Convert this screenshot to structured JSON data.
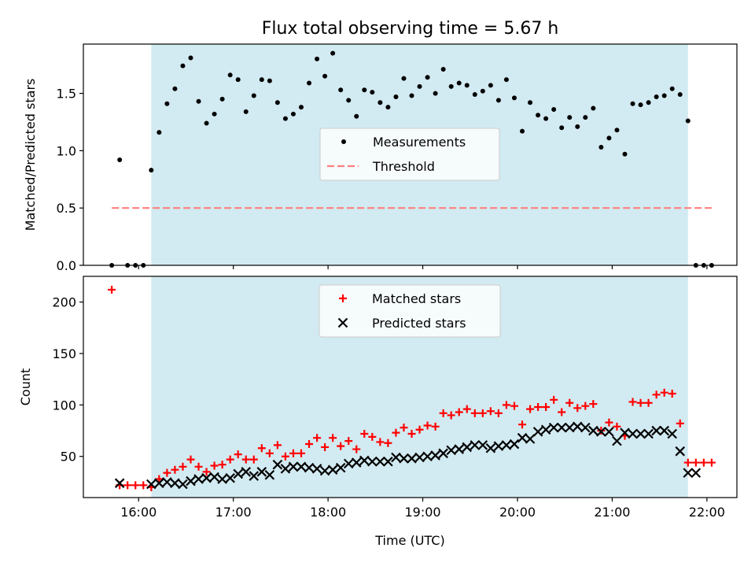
{
  "figure": {
    "title": "Flux total observing time = 5.67 h"
  },
  "chart_data": [
    {
      "type": "scatter",
      "title": "Flux total observing time = 5.67 h",
      "ylabel": "Matched/Predicted stars",
      "xlim": [
        "15:25",
        "22:19"
      ],
      "ylim": [
        0,
        1.93
      ],
      "yticks": [
        "0.0",
        "0.5",
        "1.0",
        "1.5"
      ],
      "ytick_values": [
        0,
        0.5,
        1.0,
        1.5
      ],
      "shaded_interval": [
        "16:08",
        "21:48"
      ],
      "shade_color": "#add8e6",
      "legend_position": "center",
      "series": [
        {
          "name": "Measurements",
          "color": "#000000",
          "marker": "dot",
          "x": [
            "15:43",
            "15:48",
            "15:53",
            "15:58",
            "16:03",
            "16:08",
            "16:13",
            "16:18",
            "16:23",
            "16:28",
            "16:33",
            "16:38",
            "16:43",
            "16:48",
            "16:53",
            "16:58",
            "17:03",
            "17:08",
            "17:13",
            "17:18",
            "17:23",
            "17:28",
            "17:33",
            "17:38",
            "17:43",
            "17:48",
            "17:53",
            "17:58",
            "18:03",
            "18:08",
            "18:13",
            "18:18",
            "18:23",
            "18:28",
            "18:33",
            "18:38",
            "18:43",
            "18:48",
            "18:53",
            "18:58",
            "19:03",
            "19:08",
            "19:13",
            "19:18",
            "19:23",
            "19:28",
            "19:33",
            "19:38",
            "19:43",
            "19:48",
            "19:53",
            "19:58",
            "20:03",
            "20:08",
            "20:13",
            "20:18",
            "20:23",
            "20:28",
            "20:33",
            "20:38",
            "20:43",
            "20:48",
            "20:53",
            "20:58",
            "21:03",
            "21:08",
            "21:13",
            "21:18",
            "21:23",
            "21:28",
            "21:33",
            "21:38",
            "21:43",
            "21:48",
            "21:53",
            "21:58",
            "22:03"
          ],
          "y": [
            0.0,
            0.92,
            0.0,
            0.0,
            0.0,
            0.83,
            1.16,
            1.41,
            1.54,
            1.74,
            1.81,
            1.43,
            1.24,
            1.32,
            1.45,
            1.66,
            1.62,
            1.34,
            1.48,
            1.62,
            1.61,
            1.42,
            1.28,
            1.32,
            1.38,
            1.59,
            1.8,
            1.65,
            1.85,
            1.53,
            1.44,
            1.3,
            1.53,
            1.51,
            1.42,
            1.38,
            1.47,
            1.63,
            1.48,
            1.56,
            1.64,
            1.5,
            1.71,
            1.56,
            1.59,
            1.57,
            1.49,
            1.52,
            1.57,
            1.44,
            1.62,
            1.46,
            1.17,
            1.42,
            1.31,
            1.28,
            1.36,
            1.2,
            1.29,
            1.21,
            1.29,
            1.37,
            1.03,
            1.11,
            1.18,
            0.97,
            1.41,
            1.4,
            1.42,
            1.47,
            1.48,
            1.54,
            1.49,
            1.26,
            0.0,
            0.0,
            0.0
          ]
        },
        {
          "name": "Threshold",
          "color": "#ff7f7f",
          "style": "dashed",
          "x": [
            "15:43",
            "22:03"
          ],
          "y": [
            0.5,
            0.5
          ]
        }
      ]
    },
    {
      "type": "scatter",
      "xlabel": "Time (UTC)",
      "ylabel": "Count",
      "xlim": [
        "15:25",
        "22:19"
      ],
      "ylim": [
        10,
        225
      ],
      "xticks": [
        "16:00",
        "17:00",
        "18:00",
        "19:00",
        "20:00",
        "21:00",
        "22:00"
      ],
      "yticks": [
        "50",
        "100",
        "150",
        "200"
      ],
      "ytick_values": [
        50,
        100,
        150,
        200
      ],
      "shaded_interval": [
        "16:08",
        "21:48"
      ],
      "shade_color": "#add8e6",
      "legend_position": "upper center",
      "series": [
        {
          "name": "Matched stars",
          "color": "#ff0000",
          "marker": "plus",
          "x": [
            "15:43",
            "15:48",
            "15:53",
            "15:58",
            "16:03",
            "16:08",
            "16:13",
            "16:18",
            "16:23",
            "16:28",
            "16:33",
            "16:38",
            "16:43",
            "16:48",
            "16:53",
            "16:58",
            "17:03",
            "17:08",
            "17:13",
            "17:18",
            "17:23",
            "17:28",
            "17:33",
            "17:38",
            "17:43",
            "17:48",
            "17:53",
            "17:58",
            "18:03",
            "18:08",
            "18:13",
            "18:18",
            "18:23",
            "18:28",
            "18:33",
            "18:38",
            "18:43",
            "18:48",
            "18:53",
            "18:58",
            "19:03",
            "19:08",
            "19:13",
            "19:18",
            "19:23",
            "19:28",
            "19:33",
            "19:38",
            "19:43",
            "19:48",
            "19:53",
            "19:58",
            "20:03",
            "20:08",
            "20:13",
            "20:18",
            "20:23",
            "20:28",
            "20:33",
            "20:38",
            "20:43",
            "20:48",
            "20:53",
            "20:58",
            "21:03",
            "21:08",
            "21:13",
            "21:18",
            "21:23",
            "21:28",
            "21:33",
            "21:38",
            "21:43",
            "21:48",
            "21:53",
            "21:58",
            "22:03"
          ],
          "y": [
            212,
            22,
            22,
            22,
            22,
            20,
            28,
            34,
            37,
            40,
            47,
            40,
            35,
            41,
            42,
            47,
            52,
            47,
            47,
            58,
            53,
            61,
            50,
            53,
            53,
            62,
            68,
            59,
            68,
            60,
            65,
            57,
            72,
            69,
            64,
            63,
            73,
            78,
            72,
            76,
            80,
            79,
            92,
            90,
            93,
            96,
            92,
            92,
            94,
            92,
            100,
            99,
            81,
            96,
            98,
            98,
            105,
            93,
            102,
            97,
            99,
            101,
            75,
            83,
            79,
            70,
            103,
            102,
            102,
            110,
            112,
            111,
            82,
            44,
            44,
            44,
            44
          ]
        },
        {
          "name": "Predicted stars",
          "color": "#000000",
          "marker": "x",
          "x": [
            "15:48",
            "16:08",
            "16:13",
            "16:18",
            "16:23",
            "16:28",
            "16:33",
            "16:38",
            "16:43",
            "16:48",
            "16:53",
            "16:58",
            "17:03",
            "17:08",
            "17:13",
            "17:18",
            "17:23",
            "17:28",
            "17:33",
            "17:38",
            "17:43",
            "17:48",
            "17:53",
            "17:58",
            "18:03",
            "18:08",
            "18:13",
            "18:18",
            "18:23",
            "18:28",
            "18:33",
            "18:38",
            "18:43",
            "18:48",
            "18:53",
            "18:58",
            "19:03",
            "19:08",
            "19:13",
            "19:18",
            "19:23",
            "19:28",
            "19:33",
            "19:38",
            "19:43",
            "19:48",
            "19:53",
            "19:58",
            "20:03",
            "20:08",
            "20:13",
            "20:18",
            "20:23",
            "20:28",
            "20:33",
            "20:38",
            "20:43",
            "20:48",
            "20:53",
            "20:58",
            "21:03",
            "21:08",
            "21:13",
            "21:18",
            "21:23",
            "21:28",
            "21:33",
            "21:38",
            "21:43",
            "21:48",
            "21:53"
          ],
          "y": [
            24,
            23,
            24,
            25,
            24,
            23,
            26,
            28,
            29,
            30,
            28,
            29,
            33,
            35,
            31,
            35,
            32,
            42,
            38,
            40,
            40,
            39,
            38,
            36,
            37,
            39,
            43,
            44,
            46,
            45,
            45,
            45,
            49,
            48,
            48,
            49,
            50,
            51,
            53,
            56,
            57,
            59,
            61,
            61,
            58,
            60,
            61,
            62,
            68,
            67,
            74,
            76,
            78,
            78,
            78,
            79,
            78,
            75,
            74,
            74,
            65,
            73,
            72,
            72,
            72,
            75,
            75,
            72,
            55,
            34,
            34
          ]
        }
      ]
    }
  ]
}
